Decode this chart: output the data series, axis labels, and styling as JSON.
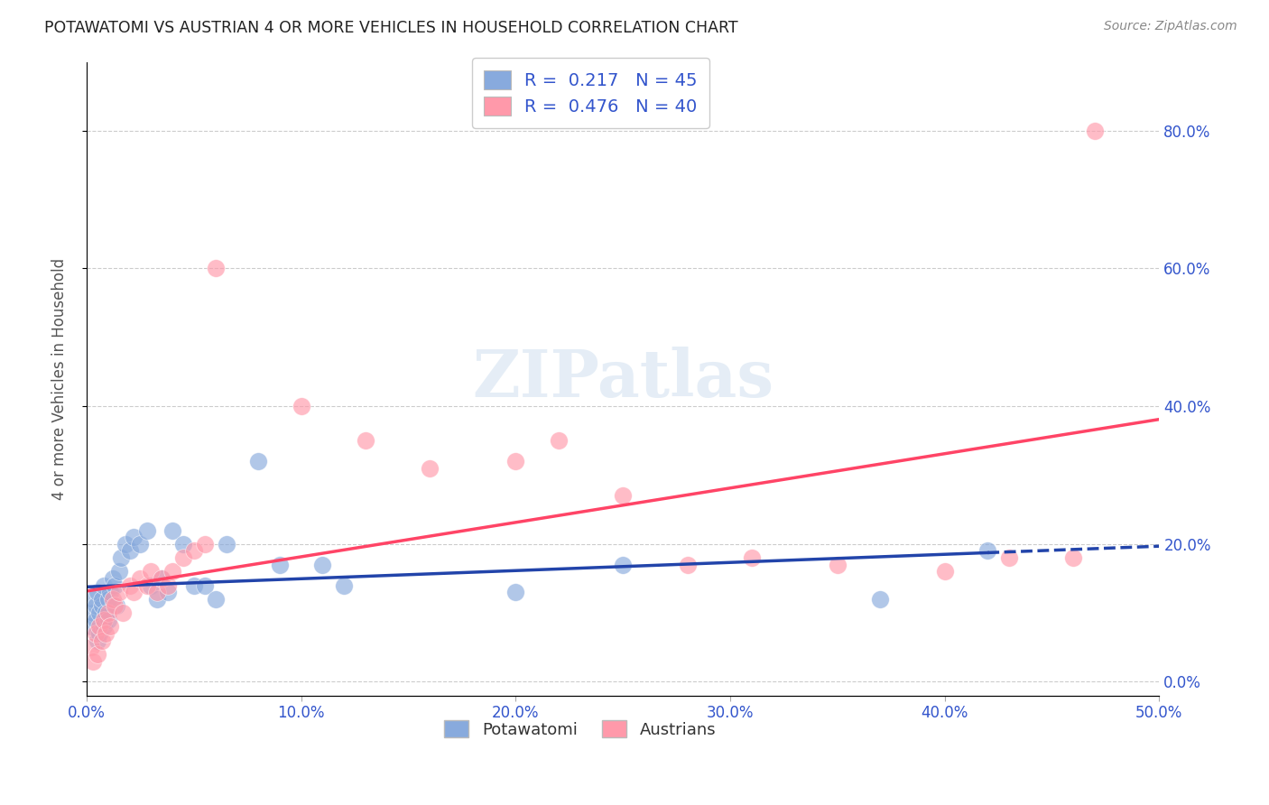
{
  "title": "POTAWATOMI VS AUSTRIAN 4 OR MORE VEHICLES IN HOUSEHOLD CORRELATION CHART",
  "source": "Source: ZipAtlas.com",
  "ylabel_label": "4 or more Vehicles in Household",
  "xlim": [
    0.0,
    0.5
  ],
  "ylim": [
    -0.02,
    0.9
  ],
  "legend_r1": "0.217",
  "legend_n1": "45",
  "legend_r2": "0.476",
  "legend_n2": "40",
  "color_blue": "#88AADD",
  "color_pink": "#FF99AA",
  "color_blue_line": "#2244AA",
  "color_pink_line": "#FF4466",
  "color_text": "#3355CC",
  "watermark_text": "ZIPatlas",
  "potawatomi_x": [
    0.002,
    0.003,
    0.003,
    0.004,
    0.004,
    0.005,
    0.005,
    0.006,
    0.006,
    0.007,
    0.007,
    0.008,
    0.008,
    0.009,
    0.01,
    0.01,
    0.011,
    0.012,
    0.013,
    0.014,
    0.015,
    0.016,
    0.018,
    0.02,
    0.022,
    0.025,
    0.028,
    0.03,
    0.033,
    0.035,
    0.038,
    0.04,
    0.045,
    0.05,
    0.055,
    0.06,
    0.065,
    0.08,
    0.09,
    0.11,
    0.12,
    0.2,
    0.25,
    0.37,
    0.42
  ],
  "potawatomi_y": [
    0.08,
    0.1,
    0.12,
    0.09,
    0.11,
    0.06,
    0.13,
    0.07,
    0.1,
    0.11,
    0.12,
    0.08,
    0.14,
    0.1,
    0.12,
    0.09,
    0.13,
    0.15,
    0.14,
    0.11,
    0.16,
    0.18,
    0.2,
    0.19,
    0.21,
    0.2,
    0.22,
    0.14,
    0.12,
    0.15,
    0.13,
    0.22,
    0.2,
    0.14,
    0.14,
    0.12,
    0.2,
    0.32,
    0.17,
    0.17,
    0.14,
    0.13,
    0.17,
    0.12,
    0.19
  ],
  "austrians_x": [
    0.002,
    0.003,
    0.004,
    0.005,
    0.006,
    0.007,
    0.008,
    0.009,
    0.01,
    0.011,
    0.012,
    0.013,
    0.015,
    0.017,
    0.02,
    0.022,
    0.025,
    0.028,
    0.03,
    0.033,
    0.035,
    0.038,
    0.04,
    0.045,
    0.05,
    0.055,
    0.06,
    0.1,
    0.13,
    0.16,
    0.2,
    0.22,
    0.25,
    0.28,
    0.31,
    0.35,
    0.4,
    0.43,
    0.46,
    0.47
  ],
  "austrians_y": [
    0.05,
    0.03,
    0.07,
    0.04,
    0.08,
    0.06,
    0.09,
    0.07,
    0.1,
    0.08,
    0.12,
    0.11,
    0.13,
    0.1,
    0.14,
    0.13,
    0.15,
    0.14,
    0.16,
    0.13,
    0.15,
    0.14,
    0.16,
    0.18,
    0.19,
    0.2,
    0.6,
    0.4,
    0.35,
    0.31,
    0.32,
    0.35,
    0.27,
    0.17,
    0.18,
    0.17,
    0.16,
    0.18,
    0.18,
    0.8
  ],
  "ytick_vals": [
    0.0,
    0.2,
    0.4,
    0.6,
    0.8
  ],
  "ytick_labels": [
    "0.0%",
    "20.0%",
    "40.0%",
    "60.0%",
    "80.0%"
  ],
  "xtick_vals": [
    0.0,
    0.1,
    0.2,
    0.3,
    0.4,
    0.5
  ],
  "xtick_labels": [
    "0.0%",
    "10.0%",
    "20.0%",
    "30.0%",
    "40.0%",
    "50.0%"
  ]
}
